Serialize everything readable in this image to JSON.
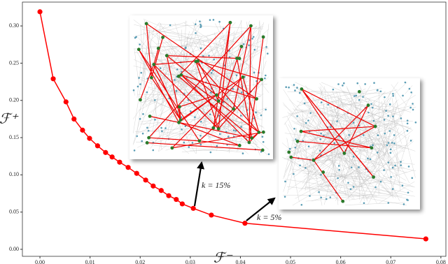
{
  "chart_data": {
    "type": "line",
    "xlabel": "ℱ⁻",
    "ylabel": "ℱ⁺",
    "x": [
      0,
      0.00265,
      0.0052,
      0.0068,
      0.0085,
      0.0099,
      0.0115,
      0.0131,
      0.0144,
      0.0159,
      0.0176,
      0.0193,
      0.0211,
      0.0226,
      0.0242,
      0.0257,
      0.0272,
      0.0284,
      0.0306,
      0.0342,
      0.0409,
      0.077
    ],
    "series": [
      {
        "color": "#ff0000",
        "values": [
          0.319,
          0.229,
          0.198,
          0.175,
          0.16,
          0.149,
          0.139,
          0.13,
          0.124,
          0.117,
          0.11,
          0.102,
          0.093,
          0.085,
          0.079,
          0.072,
          0.067,
          0.061,
          0.055,
          0.046,
          0.035,
          0.014
        ]
      }
    ],
    "xlim": [
      -0.0035,
      0.081
    ],
    "ylim": [
      -0.0094,
      0.332
    ],
    "xticks": [
      {
        "value": 0,
        "label": "0.00"
      },
      {
        "value": 0.01,
        "label": "0.01"
      },
      {
        "value": 0.02,
        "label": "0.02"
      },
      {
        "value": 0.03,
        "label": "0.03"
      },
      {
        "value": 0.04,
        "label": "0.04"
      },
      {
        "value": 0.05,
        "label": "0.05"
      },
      {
        "value": 0.06,
        "label": "0.06"
      },
      {
        "value": 0.07,
        "label": "0.07"
      },
      {
        "value": 0.08,
        "label": "0.08"
      }
    ],
    "yticks": [
      {
        "value": 0,
        "label": "0.00"
      },
      {
        "value": 0.05,
        "label": "0.05"
      },
      {
        "value": 0.1,
        "label": "0.10"
      },
      {
        "value": 0.15,
        "label": "0.15"
      },
      {
        "value": 0.2,
        "label": "0.20"
      },
      {
        "value": 0.25,
        "label": "0.25"
      },
      {
        "value": 0.3,
        "label": "0.30"
      }
    ],
    "annotations": [
      {
        "text": "k = 15%"
      },
      {
        "text": "k = 5%"
      }
    ]
  }
}
